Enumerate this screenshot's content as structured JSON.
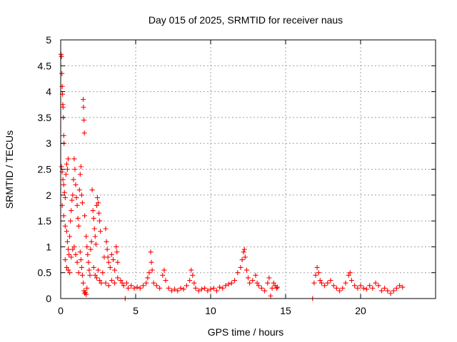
{
  "chart_data": {
    "type": "scatter",
    "title": "Day 015 of 2025, SRMTID for receiver naus",
    "xlabel": "GPS time / hours",
    "ylabel": "SRMTID / TECUs",
    "xlim": [
      0,
      25
    ],
    "ylim": [
      0,
      5
    ],
    "x_ticks": [
      0,
      5,
      10,
      15,
      20
    ],
    "x_tick_labels": [
      "0",
      "5",
      "10",
      "15",
      "20"
    ],
    "y_ticks": [
      0,
      0.5,
      1,
      1.5,
      2,
      2.5,
      3,
      3.5,
      4,
      4.5,
      5
    ],
    "y_tick_labels": [
      "0",
      "0.5",
      "1",
      "1.5",
      "2",
      "2.5",
      "3",
      "3.5",
      "4",
      "4.5",
      "5"
    ],
    "grid": true,
    "marker": "plus",
    "color": "#ff0000",
    "series": [
      {
        "name": "SRMTID",
        "points": [
          [
            0.02,
            4.72
          ],
          [
            0.05,
            4.68
          ],
          [
            0.08,
            4.35
          ],
          [
            0.1,
            4.1
          ],
          [
            0.12,
            3.95
          ],
          [
            0.14,
            3.75
          ],
          [
            0.16,
            3.7
          ],
          [
            0.18,
            3.5
          ],
          [
            0.2,
            3.15
          ],
          [
            0.22,
            3.0
          ],
          [
            0.05,
            2.55
          ],
          [
            0.1,
            2.45
          ],
          [
            0.15,
            2.3
          ],
          [
            0.2,
            2.2
          ],
          [
            0.25,
            2.05
          ],
          [
            0.3,
            1.95
          ],
          [
            0.35,
            2.4
          ],
          [
            0.4,
            2.6
          ],
          [
            0.45,
            2.5
          ],
          [
            0.5,
            2.7
          ],
          [
            0.1,
            1.8
          ],
          [
            0.2,
            1.6
          ],
          [
            0.3,
            1.4
          ],
          [
            0.4,
            1.3
          ],
          [
            0.45,
            1.1
          ],
          [
            0.5,
            0.95
          ],
          [
            0.55,
            0.85
          ],
          [
            0.6,
            1.2
          ],
          [
            0.65,
            1.5
          ],
          [
            0.7,
            1.7
          ],
          [
            0.75,
            1.9
          ],
          [
            0.8,
            2.0
          ],
          [
            0.85,
            2.3
          ],
          [
            0.9,
            2.7
          ],
          [
            0.95,
            2.5
          ],
          [
            1.0,
            2.2
          ],
          [
            1.05,
            1.95
          ],
          [
            1.1,
            1.8
          ],
          [
            1.15,
            1.55
          ],
          [
            1.2,
            1.4
          ],
          [
            0.3,
            0.75
          ],
          [
            0.4,
            0.6
          ],
          [
            0.5,
            0.55
          ],
          [
            0.6,
            0.5
          ],
          [
            0.7,
            0.8
          ],
          [
            0.8,
            0.95
          ],
          [
            0.9,
            1.0
          ],
          [
            1.0,
            0.85
          ],
          [
            1.1,
            0.7
          ],
          [
            1.2,
            0.5
          ],
          [
            1.25,
            2.1
          ],
          [
            1.3,
            2.4
          ],
          [
            1.35,
            2.55
          ],
          [
            1.4,
            2.0
          ],
          [
            1.45,
            1.85
          ],
          [
            1.5,
            3.85
          ],
          [
            1.52,
            3.7
          ],
          [
            1.55,
            3.45
          ],
          [
            1.58,
            3.2
          ],
          [
            1.6,
            1.6
          ],
          [
            1.3,
            0.9
          ],
          [
            1.35,
            0.75
          ],
          [
            1.4,
            0.6
          ],
          [
            1.45,
            0.45
          ],
          [
            1.5,
            0.3
          ],
          [
            1.55,
            0.15
          ],
          [
            1.6,
            0.1
          ],
          [
            1.65,
            0.12
          ],
          [
            1.7,
            0.08
          ],
          [
            1.75,
            0.2
          ],
          [
            1.7,
            1.2
          ],
          [
            1.75,
            1.0
          ],
          [
            1.8,
            0.85
          ],
          [
            1.85,
            0.7
          ],
          [
            1.9,
            0.55
          ],
          [
            1.95,
            0.45
          ],
          [
            2.0,
            0.95
          ],
          [
            2.05,
            1.1
          ],
          [
            2.1,
            2.1
          ],
          [
            2.15,
            1.7
          ],
          [
            2.2,
            1.55
          ],
          [
            2.25,
            1.35
          ],
          [
            2.3,
            1.2
          ],
          [
            2.35,
            1.05
          ],
          [
            2.4,
            1.8
          ],
          [
            2.45,
            1.95
          ],
          [
            2.5,
            1.85
          ],
          [
            2.55,
            1.65
          ],
          [
            2.6,
            1.5
          ],
          [
            2.65,
            1.3
          ],
          [
            2.2,
            0.6
          ],
          [
            2.3,
            0.45
          ],
          [
            2.4,
            0.4
          ],
          [
            2.5,
            0.55
          ],
          [
            2.6,
            0.35
          ],
          [
            2.7,
            0.3
          ],
          [
            2.8,
            0.5
          ],
          [
            2.9,
            0.8
          ],
          [
            3.0,
            1.35
          ],
          [
            3.05,
            1.1
          ],
          [
            3.1,
            0.95
          ],
          [
            3.15,
            0.8
          ],
          [
            3.2,
            0.7
          ],
          [
            3.3,
            0.6
          ],
          [
            3.4,
            0.85
          ],
          [
            3.5,
            0.75
          ],
          [
            3.6,
            0.55
          ],
          [
            3.7,
            1.0
          ],
          [
            3.75,
            0.9
          ],
          [
            3.8,
            0.7
          ],
          [
            3.0,
            0.3
          ],
          [
            3.2,
            0.25
          ],
          [
            3.4,
            0.35
          ],
          [
            3.6,
            0.3
          ],
          [
            3.8,
            0.4
          ],
          [
            4.0,
            0.35
          ],
          [
            4.1,
            0.3
          ],
          [
            4.2,
            0.25
          ],
          [
            4.3,
            0.0
          ],
          [
            4.4,
            0.3
          ],
          [
            4.5,
            0.2
          ],
          [
            4.7,
            0.25
          ],
          [
            4.9,
            0.2
          ],
          [
            5.1,
            0.22
          ],
          [
            5.3,
            0.2
          ],
          [
            5.5,
            0.25
          ],
          [
            5.7,
            0.3
          ],
          [
            5.8,
            0.4
          ],
          [
            5.9,
            0.5
          ],
          [
            6.0,
            0.9
          ],
          [
            6.05,
            0.7
          ],
          [
            6.1,
            0.55
          ],
          [
            6.2,
            0.3
          ],
          [
            6.4,
            0.25
          ],
          [
            6.6,
            0.2
          ],
          [
            6.8,
            0.45
          ],
          [
            6.9,
            0.55
          ],
          [
            7.0,
            0.35
          ],
          [
            7.2,
            0.2
          ],
          [
            7.4,
            0.15
          ],
          [
            7.6,
            0.18
          ],
          [
            7.8,
            0.15
          ],
          [
            8.0,
            0.2
          ],
          [
            8.2,
            0.18
          ],
          [
            8.4,
            0.25
          ],
          [
            8.6,
            0.35
          ],
          [
            8.7,
            0.55
          ],
          [
            8.8,
            0.45
          ],
          [
            8.9,
            0.3
          ],
          [
            9.0,
            0.2
          ],
          [
            9.2,
            0.15
          ],
          [
            9.4,
            0.18
          ],
          [
            9.6,
            0.2
          ],
          [
            9.8,
            0.15
          ],
          [
            10.0,
            0.18
          ],
          [
            10.2,
            0.2
          ],
          [
            10.4,
            0.15
          ],
          [
            10.6,
            0.22
          ],
          [
            10.8,
            0.2
          ],
          [
            11.0,
            0.25
          ],
          [
            11.2,
            0.28
          ],
          [
            11.4,
            0.3
          ],
          [
            11.6,
            0.35
          ],
          [
            11.8,
            0.5
          ],
          [
            12.0,
            0.6
          ],
          [
            12.1,
            0.75
          ],
          [
            12.2,
            0.9
          ],
          [
            12.25,
            0.95
          ],
          [
            12.3,
            0.8
          ],
          [
            12.4,
            0.55
          ],
          [
            12.5,
            0.4
          ],
          [
            12.6,
            0.3
          ],
          [
            12.8,
            0.35
          ],
          [
            13.0,
            0.45
          ],
          [
            13.1,
            0.3
          ],
          [
            13.2,
            0.25
          ],
          [
            13.4,
            0.2
          ],
          [
            13.6,
            0.15
          ],
          [
            13.8,
            0.3
          ],
          [
            13.9,
            0.4
          ],
          [
            14.0,
            0.05
          ],
          [
            14.1,
            0.2
          ],
          [
            14.2,
            0.3
          ],
          [
            14.3,
            0.25
          ],
          [
            14.4,
            0.2
          ],
          [
            14.45,
            0.22
          ],
          [
            16.8,
            0.0
          ],
          [
            16.9,
            0.3
          ],
          [
            17.0,
            0.45
          ],
          [
            17.1,
            0.6
          ],
          [
            17.2,
            0.5
          ],
          [
            17.3,
            0.35
          ],
          [
            17.4,
            0.3
          ],
          [
            17.6,
            0.25
          ],
          [
            17.8,
            0.3
          ],
          [
            18.0,
            0.35
          ],
          [
            18.2,
            0.25
          ],
          [
            18.4,
            0.2
          ],
          [
            18.6,
            0.15
          ],
          [
            18.8,
            0.2
          ],
          [
            19.0,
            0.3
          ],
          [
            19.2,
            0.45
          ],
          [
            19.3,
            0.5
          ],
          [
            19.4,
            0.35
          ],
          [
            19.6,
            0.25
          ],
          [
            19.8,
            0.2
          ],
          [
            20.0,
            0.25
          ],
          [
            20.2,
            0.2
          ],
          [
            20.4,
            0.18
          ],
          [
            20.6,
            0.25
          ],
          [
            20.8,
            0.2
          ],
          [
            21.0,
            0.3
          ],
          [
            21.2,
            0.25
          ],
          [
            21.4,
            0.15
          ],
          [
            21.6,
            0.2
          ],
          [
            21.8,
            0.15
          ],
          [
            22.0,
            0.1
          ],
          [
            22.2,
            0.15
          ],
          [
            22.4,
            0.2
          ],
          [
            22.6,
            0.25
          ],
          [
            22.8,
            0.22
          ]
        ]
      }
    ]
  }
}
